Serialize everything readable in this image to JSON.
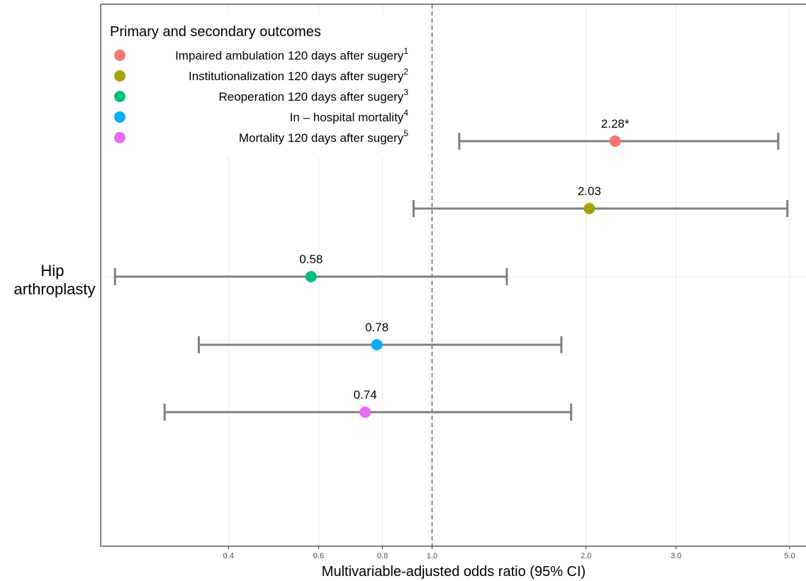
{
  "chart_data": {
    "type": "forest",
    "xlabel": "Multivariable-adjusted odds ratio (95% CI)",
    "x_scale": "log",
    "xlim": [
      0.225,
      5.4
    ],
    "x_ticks": [
      0.4,
      0.6,
      0.8,
      1.0,
      2.0,
      3.0,
      5.0
    ],
    "x_tick_labels": [
      "0.4",
      "0.6",
      "0.8",
      "1.0",
      "2.0",
      "3.0",
      "5.0"
    ],
    "reference_line": 1.0,
    "y_category": "Hip arthroplasty",
    "y_category_lines": [
      "Hip",
      "arthroplasty"
    ],
    "grid": true,
    "legend": {
      "title": "Primary and secondary outcomes",
      "position": "top-left"
    },
    "series": [
      {
        "name": "Impaired ambulation 120 days after sugery",
        "superscript": "1",
        "color": "#F8766D",
        "estimate": 2.28,
        "lower": 1.13,
        "upper": 4.75,
        "label": "2.28*"
      },
      {
        "name": "Institutionalization 120 days after sugery",
        "superscript": "2",
        "color": "#A3A500",
        "estimate": 2.03,
        "lower": 0.92,
        "upper": 4.95,
        "label": "2.03"
      },
      {
        "name": "Reoperation 120 days after sugery",
        "superscript": "3",
        "color": "#00BF7D",
        "estimate": 0.58,
        "lower": 0.24,
        "upper": 1.4,
        "label": "0.58"
      },
      {
        "name": "In – hospital mortality",
        "superscript": "4",
        "color": "#00B0F6",
        "estimate": 0.78,
        "lower": 0.35,
        "upper": 1.79,
        "label": "0.78"
      },
      {
        "name": "Mortality 120 days after sugery",
        "superscript": "5",
        "color": "#E76BF3",
        "estimate": 0.74,
        "lower": 0.3,
        "upper": 1.87,
        "label": "0.74"
      }
    ]
  }
}
